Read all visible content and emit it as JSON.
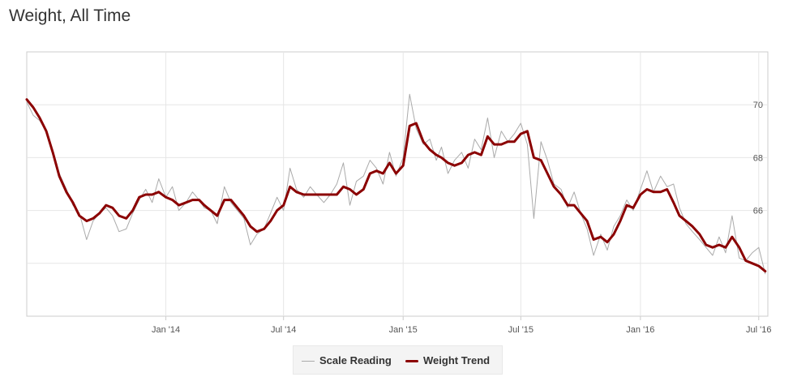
{
  "page": {
    "title": "Weight, All Time"
  },
  "legend": {
    "scale_label": "Scale Reading",
    "trend_label": "Weight Trend"
  },
  "colors": {
    "scale": "#aaaaaa",
    "trend": "#8b0000",
    "grid": "#e6e6e6",
    "axis": "#cccccc"
  },
  "chart_data": {
    "type": "line",
    "title": "Weight, All Time",
    "xlabel": "",
    "ylabel": "",
    "x_type": "date",
    "xlim": [
      "2013-06-01",
      "2016-07-15"
    ],
    "ylim": [
      62,
      72
    ],
    "yticks": [
      64,
      66,
      68,
      70
    ],
    "ytick_labels": [
      "",
      "66",
      "68",
      "70"
    ],
    "xticks": [
      "2014-01-01",
      "2014-07-01",
      "2015-01-01",
      "2015-07-01",
      "2016-01-01",
      "2016-07-01"
    ],
    "xtick_labels": [
      "Jan '14",
      "Jul '14",
      "Jan '15",
      "Jul '15",
      "Jan '16",
      "Jul '16"
    ],
    "grid": true,
    "legend_position": "bottom-center",
    "series": [
      {
        "name": "Scale Reading",
        "x": [
          "2013-06-01",
          "2013-06-11",
          "2013-06-21",
          "2013-07-01",
          "2013-07-11",
          "2013-07-21",
          "2013-08-01",
          "2013-08-11",
          "2013-08-21",
          "2013-09-01",
          "2013-09-11",
          "2013-09-21",
          "2013-10-01",
          "2013-10-11",
          "2013-10-21",
          "2013-11-01",
          "2013-11-11",
          "2013-11-21",
          "2013-12-01",
          "2013-12-11",
          "2013-12-21",
          "2014-01-01",
          "2014-01-11",
          "2014-01-21",
          "2014-02-01",
          "2014-02-11",
          "2014-02-21",
          "2014-03-01",
          "2014-03-11",
          "2014-03-21",
          "2014-04-01",
          "2014-04-11",
          "2014-04-21",
          "2014-05-01",
          "2014-05-11",
          "2014-05-21",
          "2014-06-01",
          "2014-06-11",
          "2014-06-21",
          "2014-07-01",
          "2014-07-11",
          "2014-07-21",
          "2014-08-01",
          "2014-08-11",
          "2014-08-21",
          "2014-09-01",
          "2014-09-11",
          "2014-09-21",
          "2014-10-01",
          "2014-10-11",
          "2014-10-21",
          "2014-11-01",
          "2014-11-11",
          "2014-11-21",
          "2014-12-01",
          "2014-12-11",
          "2014-12-21",
          "2015-01-01",
          "2015-01-11",
          "2015-01-21",
          "2015-02-01",
          "2015-02-11",
          "2015-02-21",
          "2015-03-01",
          "2015-03-11",
          "2015-03-21",
          "2015-04-01",
          "2015-04-11",
          "2015-04-21",
          "2015-05-01",
          "2015-05-11",
          "2015-05-21",
          "2015-06-01",
          "2015-06-11",
          "2015-06-21",
          "2015-07-01",
          "2015-07-11",
          "2015-07-21",
          "2015-08-01",
          "2015-08-11",
          "2015-08-21",
          "2015-09-01",
          "2015-09-11",
          "2015-09-21",
          "2015-10-01",
          "2015-10-11",
          "2015-10-21",
          "2015-11-01",
          "2015-11-11",
          "2015-11-21",
          "2015-12-01",
          "2015-12-11",
          "2015-12-21",
          "2016-01-01",
          "2016-01-11",
          "2016-01-21",
          "2016-02-01",
          "2016-02-11",
          "2016-02-21",
          "2016-03-01",
          "2016-03-11",
          "2016-03-21",
          "2016-04-01",
          "2016-04-11",
          "2016-04-21",
          "2016-05-01",
          "2016-05-11",
          "2016-05-21",
          "2016-06-01",
          "2016-06-11",
          "2016-06-21",
          "2016-07-01",
          "2016-07-11"
        ],
        "y": [
          70.1,
          69.6,
          69.4,
          69.0,
          68.2,
          67.4,
          66.8,
          66.2,
          65.9,
          64.9,
          65.6,
          65.9,
          66.1,
          65.8,
          65.2,
          65.3,
          65.9,
          66.4,
          66.8,
          66.3,
          67.2,
          66.5,
          66.9,
          66.0,
          66.3,
          66.7,
          66.4,
          66.1,
          66.0,
          65.5,
          66.9,
          66.3,
          66.0,
          65.7,
          64.7,
          65.1,
          65.3,
          65.9,
          66.5,
          66.0,
          67.6,
          66.8,
          66.5,
          66.9,
          66.6,
          66.3,
          66.6,
          67.0,
          67.8,
          66.2,
          67.1,
          67.3,
          67.9,
          67.6,
          67.0,
          68.2,
          67.3,
          68.0,
          70.4,
          69.1,
          68.5,
          68.7,
          67.9,
          68.4,
          67.4,
          67.9,
          68.2,
          67.6,
          68.7,
          68.3,
          69.5,
          68.0,
          69.0,
          68.6,
          68.9,
          69.3,
          68.5,
          65.7,
          68.6,
          67.9,
          67.0,
          66.8,
          66.1,
          66.7,
          65.9,
          65.3,
          64.3,
          65.1,
          64.5,
          65.4,
          65.8,
          66.4,
          66.0,
          66.8,
          67.5,
          66.7,
          67.3,
          66.9,
          67.0,
          66.1,
          65.5,
          65.2,
          64.9,
          64.6,
          64.3,
          65.0,
          64.4,
          65.8,
          64.2,
          64.1,
          64.4,
          64.6,
          63.6
        ]
      },
      {
        "name": "Weight Trend",
        "x": [
          "2013-06-01",
          "2013-06-11",
          "2013-06-21",
          "2013-07-01",
          "2013-07-11",
          "2013-07-21",
          "2013-08-01",
          "2013-08-11",
          "2013-08-21",
          "2013-09-01",
          "2013-09-11",
          "2013-09-21",
          "2013-10-01",
          "2013-10-11",
          "2013-10-21",
          "2013-11-01",
          "2013-11-11",
          "2013-11-21",
          "2013-12-01",
          "2013-12-11",
          "2013-12-21",
          "2014-01-01",
          "2014-01-11",
          "2014-01-21",
          "2014-02-01",
          "2014-02-11",
          "2014-02-21",
          "2014-03-01",
          "2014-03-11",
          "2014-03-21",
          "2014-04-01",
          "2014-04-11",
          "2014-04-21",
          "2014-05-01",
          "2014-05-11",
          "2014-05-21",
          "2014-06-01",
          "2014-06-11",
          "2014-06-21",
          "2014-07-01",
          "2014-07-11",
          "2014-07-21",
          "2014-08-01",
          "2014-08-11",
          "2014-08-21",
          "2014-09-01",
          "2014-09-11",
          "2014-09-21",
          "2014-10-01",
          "2014-10-11",
          "2014-10-21",
          "2014-11-01",
          "2014-11-11",
          "2014-11-21",
          "2014-12-01",
          "2014-12-11",
          "2014-12-21",
          "2015-01-01",
          "2015-01-11",
          "2015-01-21",
          "2015-02-01",
          "2015-02-11",
          "2015-02-21",
          "2015-03-01",
          "2015-03-11",
          "2015-03-21",
          "2015-04-01",
          "2015-04-11",
          "2015-04-21",
          "2015-05-01",
          "2015-05-11",
          "2015-05-21",
          "2015-06-01",
          "2015-06-11",
          "2015-06-21",
          "2015-07-01",
          "2015-07-11",
          "2015-07-21",
          "2015-08-01",
          "2015-08-11",
          "2015-08-21",
          "2015-09-01",
          "2015-09-11",
          "2015-09-21",
          "2015-10-01",
          "2015-10-11",
          "2015-10-21",
          "2015-11-01",
          "2015-11-11",
          "2015-11-21",
          "2015-12-01",
          "2015-12-11",
          "2015-12-21",
          "2016-01-01",
          "2016-01-11",
          "2016-01-21",
          "2016-02-01",
          "2016-02-11",
          "2016-02-21",
          "2016-03-01",
          "2016-03-11",
          "2016-03-21",
          "2016-04-01",
          "2016-04-11",
          "2016-04-21",
          "2016-05-01",
          "2016-05-11",
          "2016-05-21",
          "2016-06-01",
          "2016-06-11",
          "2016-06-21",
          "2016-07-01",
          "2016-07-11"
        ],
        "y": [
          70.2,
          69.9,
          69.5,
          69.0,
          68.2,
          67.3,
          66.7,
          66.3,
          65.8,
          65.6,
          65.7,
          65.9,
          66.2,
          66.1,
          65.8,
          65.7,
          66.0,
          66.5,
          66.6,
          66.6,
          66.7,
          66.5,
          66.4,
          66.2,
          66.3,
          66.4,
          66.4,
          66.2,
          66.0,
          65.8,
          66.4,
          66.4,
          66.1,
          65.8,
          65.4,
          65.2,
          65.3,
          65.6,
          66.0,
          66.2,
          66.9,
          66.7,
          66.6,
          66.6,
          66.6,
          66.6,
          66.6,
          66.6,
          66.9,
          66.8,
          66.6,
          66.8,
          67.4,
          67.5,
          67.4,
          67.8,
          67.4,
          67.7,
          69.2,
          69.3,
          68.6,
          68.3,
          68.1,
          68.0,
          67.8,
          67.7,
          67.8,
          68.1,
          68.2,
          68.1,
          68.8,
          68.5,
          68.5,
          68.6,
          68.6,
          68.9,
          69.0,
          68.0,
          67.9,
          67.4,
          66.9,
          66.6,
          66.2,
          66.2,
          65.9,
          65.6,
          64.9,
          65.0,
          64.8,
          65.1,
          65.6,
          66.2,
          66.1,
          66.6,
          66.8,
          66.7,
          66.7,
          66.8,
          66.3,
          65.8,
          65.6,
          65.4,
          65.1,
          64.7,
          64.6,
          64.7,
          64.6,
          65.0,
          64.6,
          64.1,
          64.0,
          63.9,
          63.7
        ]
      }
    ]
  }
}
